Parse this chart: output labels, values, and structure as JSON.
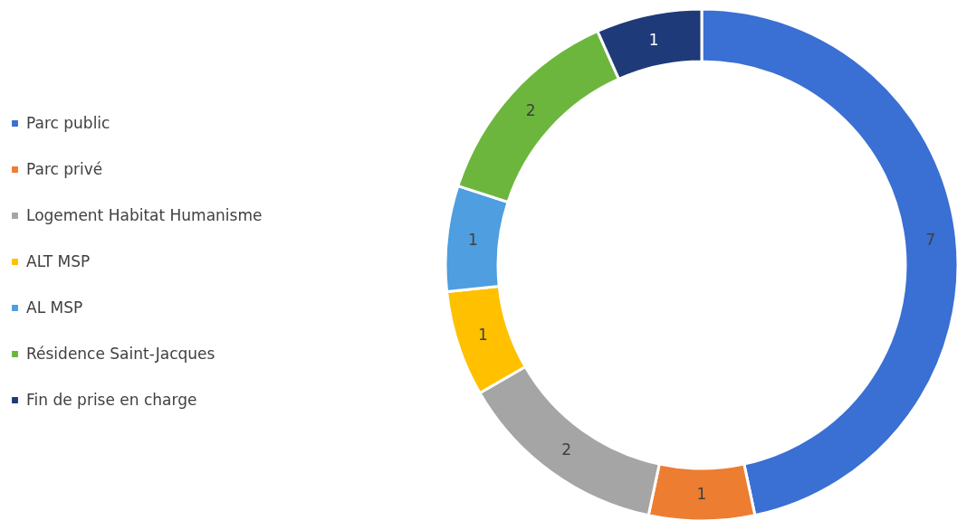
{
  "chart_data": {
    "type": "donut",
    "categories": [
      "Parc public",
      "Parc privé",
      "Logement Habitat Humanisme",
      "ALT MSP",
      "AL MSP",
      "Résidence Saint-Jacques",
      "Fin de prise en charge"
    ],
    "values": [
      7,
      1,
      2,
      1,
      1,
      2,
      1
    ],
    "colors": [
      "#3a6fd3",
      "#ed7d31",
      "#a5a5a5",
      "#ffc000",
      "#4e9ee0",
      "#6db63e",
      "#1f3a78"
    ],
    "data_labels": true,
    "legend": "left"
  }
}
